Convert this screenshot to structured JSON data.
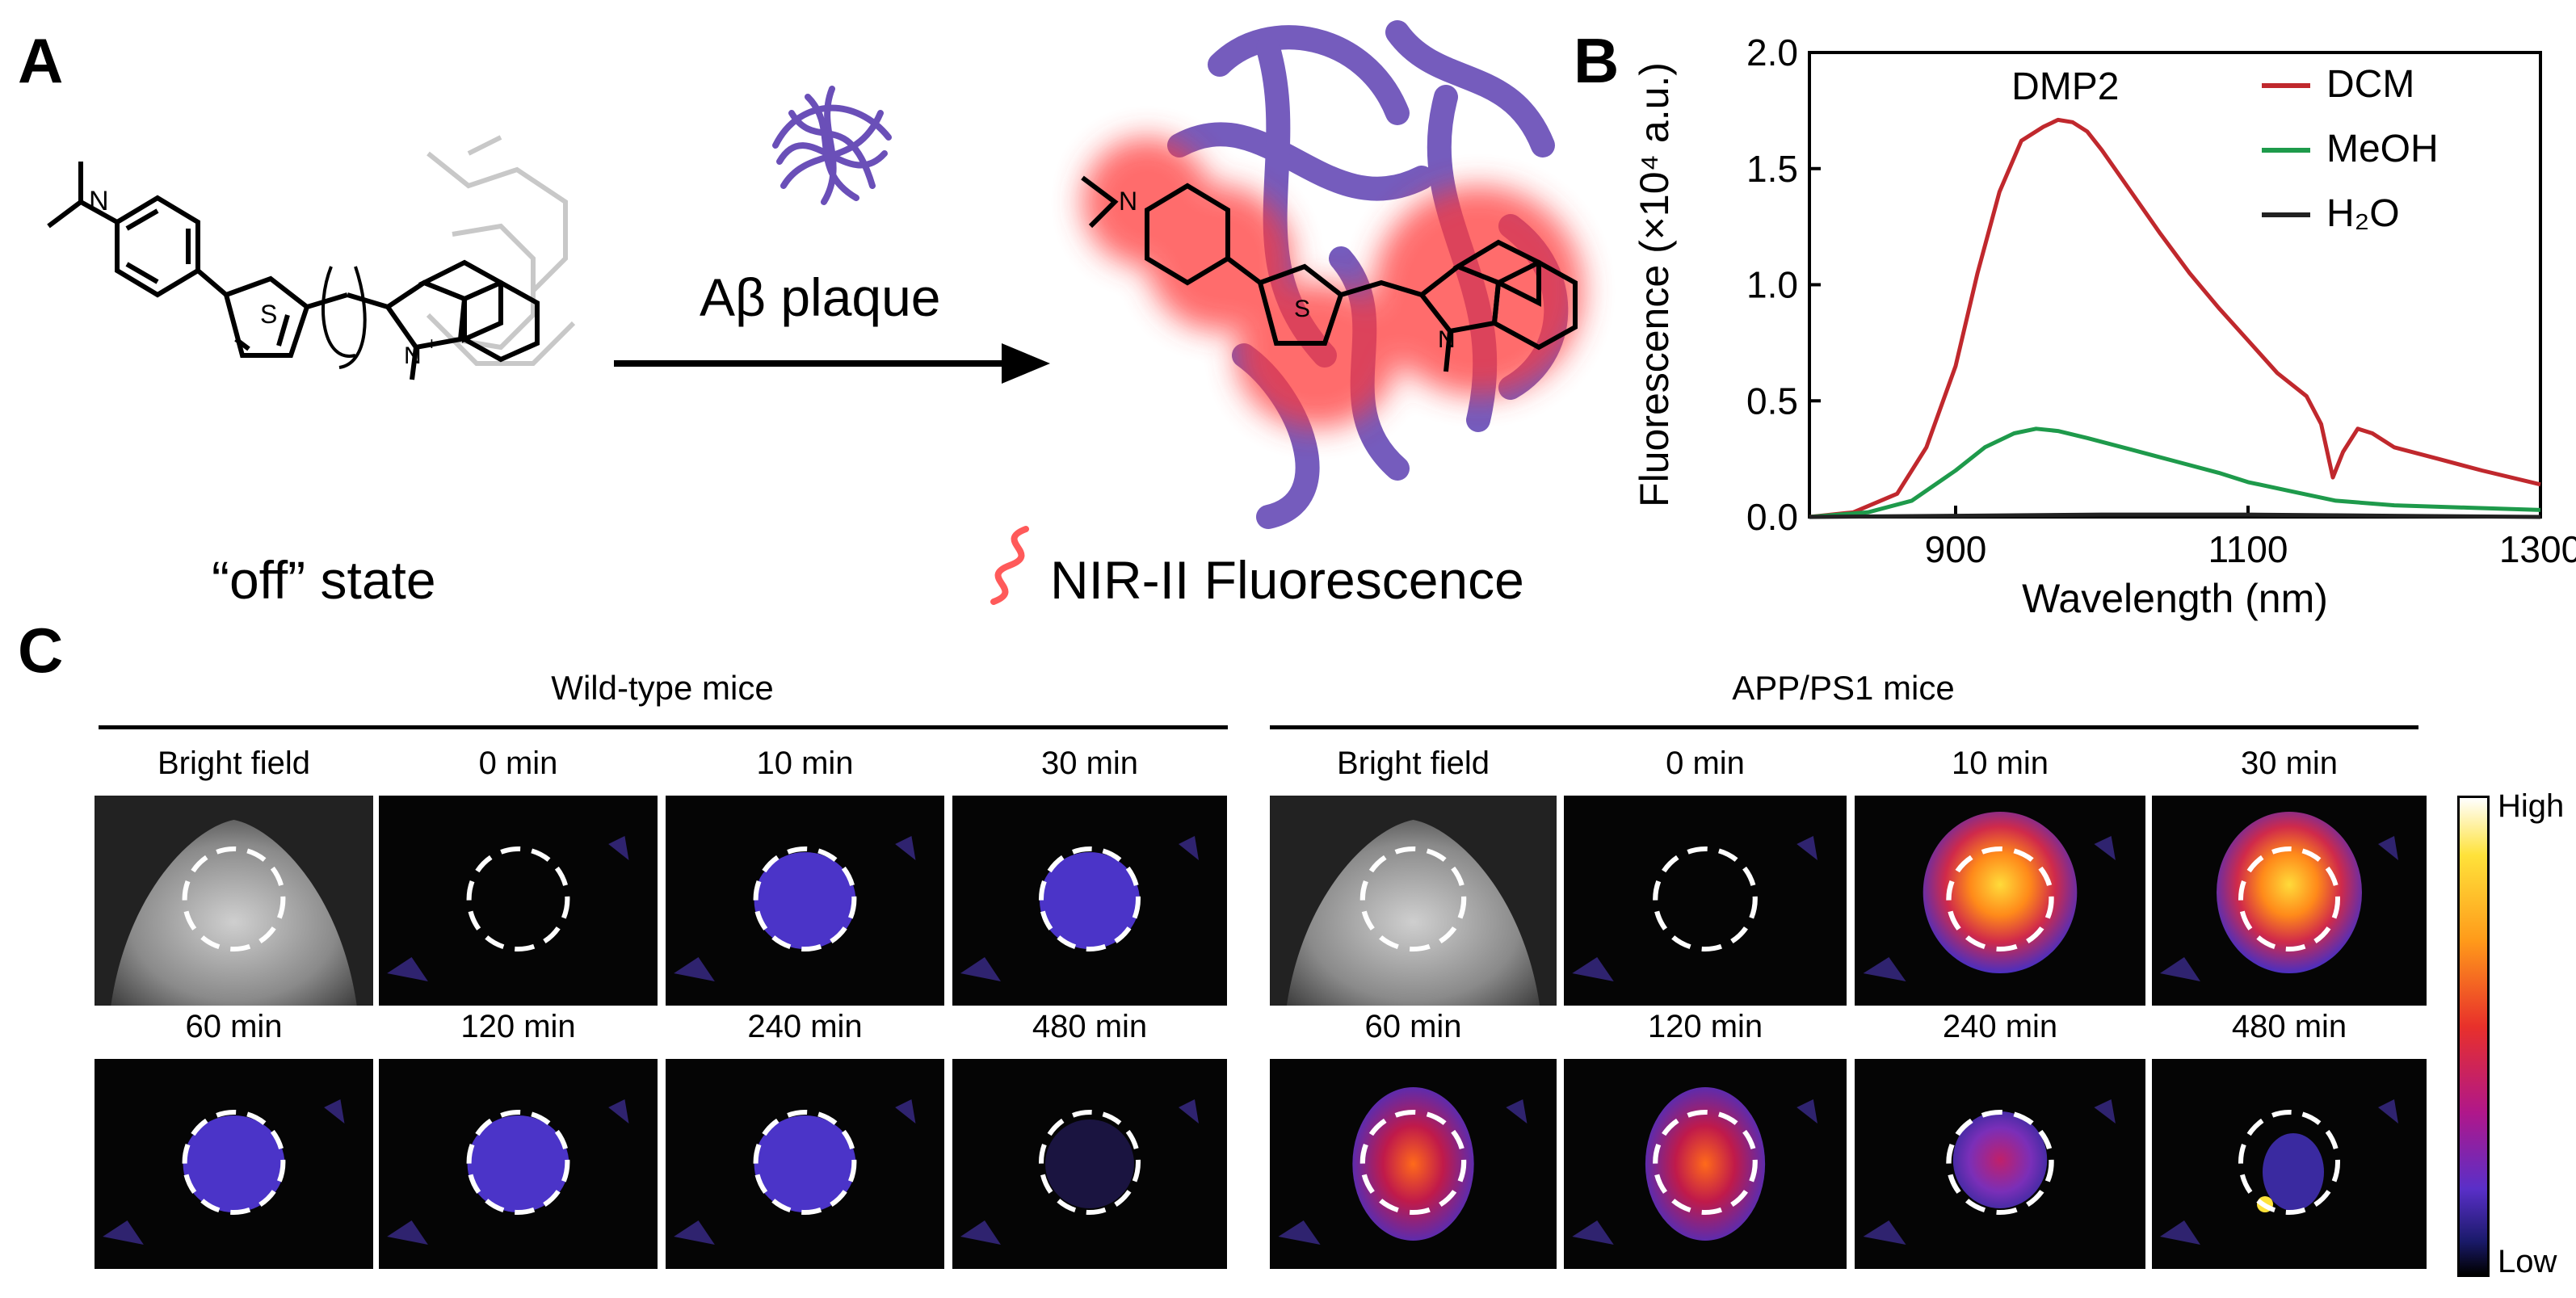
{
  "panel_a": {
    "letter": "A",
    "reagent": "Aβ plaque",
    "left_caption": "“off” state",
    "right_caption": "NIR-II Fluorescence",
    "colors": {
      "aggregate": "#6a4fb8",
      "glow": "#ff3b3b",
      "ghost": "#c8c8c8"
    }
  },
  "panel_b": {
    "letter": "B",
    "annotation": "DMP2"
  },
  "chart_data": {
    "type": "line",
    "annotation": "DMP2",
    "xlabel": "Wavelength (nm)",
    "ylabel": "Fluorescence (×10⁴ a.u.)",
    "xlim": [
      800,
      1300
    ],
    "ylim": [
      0,
      2.0
    ],
    "x_ticks": [
      "900",
      "1100",
      "1300"
    ],
    "y_ticks": [
      "0.0",
      "0.5",
      "1.0",
      "1.5",
      "2.0"
    ],
    "legend_position": "top-right",
    "series": [
      {
        "name": "DCM",
        "color": "#c0282d",
        "x": [
          800,
          830,
          860,
          880,
          900,
          915,
          930,
          945,
          960,
          970,
          980,
          990,
          1000,
          1020,
          1040,
          1060,
          1080,
          1100,
          1120,
          1140,
          1150,
          1158,
          1165,
          1175,
          1185,
          1200,
          1230,
          1260,
          1300
        ],
        "y": [
          0.0,
          0.02,
          0.1,
          0.3,
          0.65,
          1.05,
          1.4,
          1.62,
          1.68,
          1.71,
          1.7,
          1.66,
          1.58,
          1.4,
          1.22,
          1.05,
          0.9,
          0.76,
          0.62,
          0.52,
          0.4,
          0.17,
          0.28,
          0.38,
          0.36,
          0.3,
          0.25,
          0.2,
          0.14
        ]
      },
      {
        "name": "MeOH",
        "color": "#1e9a4b",
        "x": [
          800,
          840,
          870,
          900,
          920,
          940,
          955,
          970,
          990,
          1020,
          1050,
          1080,
          1100,
          1130,
          1160,
          1200,
          1250,
          1300
        ],
        "y": [
          0.0,
          0.02,
          0.07,
          0.2,
          0.3,
          0.36,
          0.38,
          0.37,
          0.34,
          0.29,
          0.24,
          0.19,
          0.15,
          0.11,
          0.07,
          0.05,
          0.04,
          0.03
        ]
      },
      {
        "name": "H₂O",
        "color": "#222222",
        "x": [
          800,
          900,
          1000,
          1100,
          1200,
          1300
        ],
        "y": [
          0.0,
          0.005,
          0.01,
          0.01,
          0.005,
          0.0
        ]
      }
    ]
  },
  "panel_c": {
    "letter": "C",
    "groups": [
      {
        "title": "Wild-type mice",
        "row1": [
          "Bright field",
          "0 min",
          "10 min",
          "30 min"
        ],
        "row2": [
          "60 min",
          "120 min",
          "240 min",
          "480 min"
        ]
      },
      {
        "title": "APP/PS1 mice",
        "row1": [
          "Bright field",
          "0 min",
          "10 min",
          "30 min"
        ],
        "row2": [
          "60 min",
          "120 min",
          "240 min",
          "480 min"
        ]
      }
    ],
    "colorbar": {
      "high": "High",
      "low": "Low"
    }
  }
}
